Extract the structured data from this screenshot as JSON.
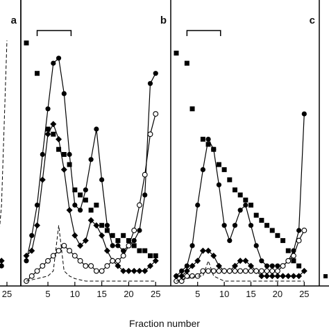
{
  "xlabel": "Fraction number",
  "panels": [
    {
      "letter": "a",
      "ticks": [
        "25"
      ]
    },
    {
      "letter": "b",
      "ticks": [
        "5",
        "10",
        "15",
        "20",
        "25"
      ]
    },
    {
      "letter": "c",
      "ticks": [
        "5",
        "10",
        "15",
        "20",
        "25"
      ]
    }
  ],
  "chart_data": [
    {
      "type": "scatter",
      "panel": "a",
      "xlabel": "Fraction number",
      "xlim": [
        null,
        26
      ],
      "x_ticks": [
        25
      ],
      "series": [
        {
          "marker": "filled-circle",
          "style": "line",
          "x": [
            23,
            24
          ],
          "y": [
            0.04,
            0.06
          ]
        },
        {
          "marker": "filled-diamond",
          "style": "line",
          "x": [
            23,
            24
          ],
          "y": [
            0.06,
            0.08
          ]
        },
        {
          "marker": "dashed-line",
          "style": "dashed",
          "x": [
            23,
            24,
            25
          ],
          "y": [
            0.05,
            0.3,
            0.95
          ]
        }
      ]
    },
    {
      "type": "line",
      "panel": "b",
      "xlabel": "Fraction number",
      "xlim": [
        1,
        26
      ],
      "x_ticks": [
        5,
        10,
        15,
        20,
        25
      ],
      "ylim": [
        0,
        1
      ],
      "annotations": [
        "bracket over fractions 3–9"
      ],
      "series": [
        {
          "marker": "filled-square",
          "style": "points",
          "x": [
            1,
            3,
            5,
            6,
            7,
            8,
            9,
            10,
            11,
            12,
            13,
            14,
            15,
            16,
            17,
            18,
            19,
            20,
            21,
            22,
            23,
            24,
            25
          ],
          "y": [
            0.94,
            0.82,
            0.6,
            0.58,
            0.52,
            0.5,
            0.46,
            0.36,
            0.34,
            0.32,
            0.28,
            0.3,
            0.22,
            0.2,
            0.18,
            0.16,
            0.18,
            0.16,
            0.14,
            0.12,
            0.12,
            0.1,
            0.1
          ]
        },
        {
          "marker": "filled-circle",
          "style": "line",
          "x": [
            1,
            2,
            3,
            4,
            5,
            6,
            7,
            8,
            9,
            10,
            11,
            12,
            13,
            14,
            15,
            16,
            17,
            18,
            19,
            20,
            21,
            22,
            23,
            24,
            25
          ],
          "y": [
            0.08,
            0.18,
            0.3,
            0.5,
            0.68,
            0.86,
            0.88,
            0.74,
            0.5,
            0.3,
            0.28,
            0.36,
            0.48,
            0.6,
            0.4,
            0.22,
            0.14,
            0.14,
            0.12,
            0.14,
            0.16,
            0.2,
            0.34,
            0.78,
            0.82
          ]
        },
        {
          "marker": "filled-diamond",
          "style": "line",
          "x": [
            1,
            2,
            3,
            4,
            5,
            6,
            7,
            8,
            9,
            10,
            11,
            12,
            13,
            14,
            15,
            16,
            17,
            18,
            19,
            20,
            21,
            22,
            23,
            24,
            25
          ],
          "y": [
            0.1,
            0.12,
            0.22,
            0.4,
            0.58,
            0.62,
            0.56,
            0.44,
            0.28,
            0.18,
            0.14,
            0.16,
            0.24,
            0.22,
            0.18,
            0.12,
            0.08,
            0.06,
            0.04,
            0.04,
            0.04,
            0.04,
            0.04,
            0.06,
            0.08
          ]
        },
        {
          "marker": "open-circle",
          "style": "line",
          "x": [
            1,
            2,
            3,
            4,
            5,
            6,
            7,
            8,
            9,
            10,
            11,
            12,
            13,
            14,
            15,
            16,
            17,
            18,
            19,
            20,
            21,
            22,
            23,
            24,
            25
          ],
          "y": [
            0.0,
            0.02,
            0.04,
            0.06,
            0.08,
            0.1,
            0.12,
            0.14,
            0.12,
            0.1,
            0.08,
            0.06,
            0.06,
            0.04,
            0.04,
            0.06,
            0.08,
            0.08,
            0.1,
            0.14,
            0.2,
            0.3,
            0.42,
            0.58,
            0.66
          ]
        },
        {
          "marker": "dashed-line",
          "style": "dashed",
          "x": [
            1,
            3,
            5,
            6,
            7,
            8,
            9,
            10,
            12,
            15,
            20,
            25
          ],
          "y": [
            0.0,
            0.01,
            0.02,
            0.04,
            0.22,
            0.04,
            0.02,
            0.01,
            0.0,
            0.0,
            0.0,
            0.0
          ]
        }
      ]
    },
    {
      "type": "line",
      "panel": "c",
      "xlabel": "Fraction number",
      "xlim": [
        1,
        26
      ],
      "x_ticks": [
        5,
        10,
        15,
        20,
        25
      ],
      "ylim": [
        0,
        1
      ],
      "annotations": [
        "bracket over fractions 3–9"
      ],
      "series": [
        {
          "marker": "filled-square",
          "style": "points",
          "x": [
            1,
            3,
            4,
            6,
            7,
            8,
            9,
            10,
            11,
            12,
            13,
            14,
            15,
            16,
            17,
            18,
            19,
            20,
            21,
            22,
            23,
            24
          ],
          "y": [
            0.9,
            0.86,
            0.68,
            0.56,
            0.54,
            0.52,
            0.46,
            0.44,
            0.4,
            0.36,
            0.34,
            0.32,
            0.3,
            0.26,
            0.24,
            0.22,
            0.2,
            0.18,
            0.16,
            0.12,
            0.08,
            0.06
          ]
        },
        {
          "marker": "filled-circle",
          "style": "line",
          "x": [
            1,
            2,
            3,
            4,
            5,
            6,
            7,
            8,
            9,
            10,
            11,
            12,
            13,
            14,
            15,
            16,
            17,
            18,
            19,
            20,
            21,
            22,
            23,
            24,
            25
          ],
          "y": [
            0.02,
            0.04,
            0.06,
            0.14,
            0.3,
            0.44,
            0.56,
            0.52,
            0.38,
            0.22,
            0.16,
            0.22,
            0.28,
            0.3,
            0.22,
            0.14,
            0.08,
            0.06,
            0.06,
            0.06,
            0.06,
            0.08,
            0.12,
            0.2,
            0.66
          ]
        },
        {
          "marker": "filled-diamond",
          "style": "line",
          "x": [
            1,
            2,
            3,
            4,
            5,
            6,
            7,
            8,
            9,
            10,
            11,
            12,
            13,
            14,
            15,
            16,
            17,
            18,
            19,
            20,
            21,
            22,
            23,
            24,
            25
          ],
          "y": [
            0.02,
            0.02,
            0.04,
            0.06,
            0.08,
            0.12,
            0.12,
            0.1,
            0.06,
            0.04,
            0.04,
            0.06,
            0.08,
            0.08,
            0.06,
            0.04,
            0.02,
            0.02,
            0.02,
            0.02,
            0.02,
            0.02,
            0.02,
            0.02,
            0.04
          ]
        },
        {
          "marker": "open-circle",
          "style": "line",
          "x": [
            1,
            2,
            3,
            4,
            5,
            6,
            7,
            8,
            9,
            10,
            11,
            12,
            13,
            14,
            15,
            16,
            17,
            18,
            19,
            20,
            21,
            22,
            23,
            24,
            25
          ],
          "y": [
            0.0,
            0.0,
            0.02,
            0.02,
            0.02,
            0.04,
            0.04,
            0.04,
            0.04,
            0.04,
            0.04,
            0.04,
            0.04,
            0.04,
            0.04,
            0.04,
            0.04,
            0.04,
            0.04,
            0.04,
            0.06,
            0.08,
            0.1,
            0.16,
            0.2
          ]
        },
        {
          "marker": "dashed-line",
          "style": "dashed",
          "x": [
            1,
            3,
            5,
            6,
            7,
            8,
            9,
            10,
            12,
            15,
            20,
            25
          ],
          "y": [
            0.0,
            0.01,
            0.02,
            0.02,
            0.08,
            0.02,
            0.01,
            0.0,
            0.0,
            0.0,
            0.0,
            0.0
          ]
        }
      ]
    }
  ]
}
